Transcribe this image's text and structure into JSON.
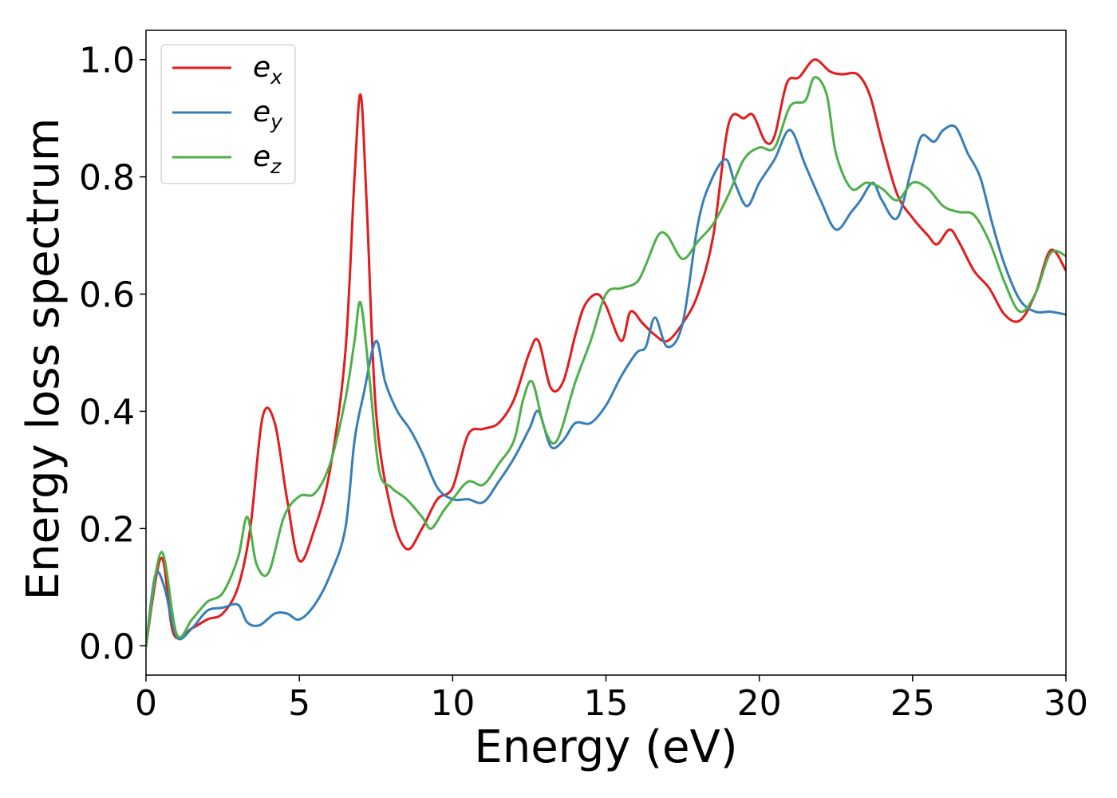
{
  "chart_data": {
    "type": "line",
    "title": "",
    "xlabel": "Energy (eV)",
    "ylabel": "Energy loss spectrum",
    "xlim": [
      0,
      30
    ],
    "ylim": [
      -0.05,
      1.05
    ],
    "xticks": [
      0,
      5,
      10,
      15,
      20,
      25,
      30
    ],
    "xtick_labels": [
      "0",
      "5",
      "10",
      "15",
      "20",
      "25",
      "30"
    ],
    "yticks": [
      0.0,
      0.2,
      0.4,
      0.6,
      0.8,
      1.0
    ],
    "ytick_labels": [
      "0.0",
      "0.2",
      "0.4",
      "0.6",
      "0.8",
      "1.0"
    ],
    "grid": false,
    "legend_position": "upper-left",
    "series": [
      {
        "name": "e_x",
        "label_main": "e",
        "label_sub": "x",
        "color": "#e41a1c",
        "x": [
          0,
          0.5,
          0.9,
          1.5,
          2,
          2.5,
          3,
          3.4,
          3.8,
          4.2,
          4.6,
          5,
          5.5,
          6,
          6.5,
          6.8,
          7,
          7.2,
          7.5,
          8,
          8.5,
          9,
          9.5,
          10,
          10.5,
          11,
          11.5,
          12,
          12.5,
          12.8,
          13.2,
          13.6,
          14,
          14.3,
          14.7,
          15,
          15.5,
          15.8,
          16.2,
          16.6,
          17,
          17.5,
          18,
          18.5,
          19,
          19.5,
          19.8,
          20.2,
          20.5,
          20.9,
          21.3,
          21.8,
          22.3,
          22.7,
          23.2,
          23.6,
          24,
          24.5,
          25,
          25.5,
          25.8,
          26.2,
          26.5,
          27,
          27.5,
          28,
          28.5,
          29,
          29.5,
          30
        ],
        "y": [
          0.0,
          0.15,
          0.02,
          0.03,
          0.045,
          0.055,
          0.1,
          0.2,
          0.39,
          0.38,
          0.25,
          0.145,
          0.2,
          0.3,
          0.5,
          0.8,
          0.94,
          0.75,
          0.4,
          0.23,
          0.165,
          0.2,
          0.25,
          0.27,
          0.36,
          0.37,
          0.38,
          0.42,
          0.5,
          0.52,
          0.44,
          0.45,
          0.53,
          0.58,
          0.6,
          0.58,
          0.52,
          0.57,
          0.55,
          0.53,
          0.52,
          0.55,
          0.6,
          0.7,
          0.89,
          0.9,
          0.905,
          0.86,
          0.87,
          0.96,
          0.97,
          1.0,
          0.98,
          0.975,
          0.975,
          0.94,
          0.86,
          0.77,
          0.73,
          0.7,
          0.685,
          0.71,
          0.69,
          0.64,
          0.61,
          0.565,
          0.555,
          0.6,
          0.675,
          0.64
        ]
      },
      {
        "name": "e_y",
        "label_main": "e",
        "label_sub": "y",
        "color": "#377eb8",
        "x": [
          0,
          0.3,
          0.6,
          1,
          1.5,
          2,
          2.5,
          3,
          3.3,
          3.7,
          4.2,
          4.6,
          5,
          5.5,
          6,
          6.5,
          6.8,
          7.1,
          7.5,
          7.8,
          8.2,
          8.6,
          9,
          9.5,
          10,
          10.5,
          11,
          11.5,
          12,
          12.5,
          12.8,
          13.2,
          13.6,
          14,
          14.5,
          15,
          15.5,
          16,
          16.3,
          16.6,
          17,
          17.5,
          18,
          18.4,
          18.9,
          19.2,
          19.6,
          20,
          20.5,
          21,
          21.5,
          22,
          22.5,
          23,
          23.3,
          23.7,
          24,
          24.5,
          25,
          25.3,
          25.7,
          26,
          26.4,
          26.8,
          27.2,
          27.6,
          28,
          28.5,
          29,
          29.5,
          30
        ],
        "y": [
          0.0,
          0.12,
          0.1,
          0.015,
          0.03,
          0.06,
          0.065,
          0.07,
          0.04,
          0.035,
          0.055,
          0.055,
          0.045,
          0.07,
          0.12,
          0.2,
          0.35,
          0.43,
          0.52,
          0.45,
          0.4,
          0.37,
          0.33,
          0.27,
          0.25,
          0.25,
          0.245,
          0.28,
          0.32,
          0.37,
          0.4,
          0.34,
          0.35,
          0.38,
          0.38,
          0.41,
          0.46,
          0.5,
          0.51,
          0.56,
          0.51,
          0.55,
          0.72,
          0.79,
          0.83,
          0.79,
          0.75,
          0.79,
          0.83,
          0.88,
          0.82,
          0.76,
          0.71,
          0.74,
          0.76,
          0.79,
          0.76,
          0.73,
          0.82,
          0.87,
          0.86,
          0.88,
          0.885,
          0.84,
          0.8,
          0.72,
          0.65,
          0.59,
          0.57,
          0.57,
          0.565
        ]
      },
      {
        "name": "e_z",
        "label_main": "e",
        "label_sub": "z",
        "color": "#4daf4a",
        "x": [
          0,
          0.5,
          1,
          1.5,
          2,
          2.5,
          3,
          3.3,
          3.6,
          4,
          4.5,
          5,
          5.5,
          6,
          6.5,
          6.8,
          7,
          7.3,
          7.6,
          8,
          8.5,
          9,
          9.3,
          9.7,
          10,
          10.5,
          11,
          11.5,
          12,
          12.3,
          12.6,
          13,
          13.4,
          14,
          14.5,
          15,
          15.5,
          16,
          16.3,
          16.7,
          17,
          17.5,
          18,
          18.5,
          19,
          19.5,
          20,
          20.5,
          21,
          21.5,
          21.8,
          22.2,
          22.5,
          23,
          23.5,
          24,
          24.5,
          25,
          25.5,
          26,
          26.5,
          27,
          27.5,
          28,
          28.5,
          29,
          29.5,
          30
        ],
        "y": [
          0.0,
          0.16,
          0.02,
          0.045,
          0.075,
          0.09,
          0.15,
          0.22,
          0.14,
          0.125,
          0.22,
          0.255,
          0.26,
          0.31,
          0.42,
          0.52,
          0.585,
          0.45,
          0.3,
          0.27,
          0.25,
          0.22,
          0.2,
          0.23,
          0.25,
          0.28,
          0.275,
          0.31,
          0.35,
          0.42,
          0.45,
          0.37,
          0.35,
          0.45,
          0.52,
          0.6,
          0.61,
          0.62,
          0.65,
          0.7,
          0.7,
          0.66,
          0.69,
          0.72,
          0.77,
          0.83,
          0.85,
          0.85,
          0.92,
          0.93,
          0.97,
          0.94,
          0.84,
          0.78,
          0.79,
          0.78,
          0.76,
          0.79,
          0.78,
          0.75,
          0.74,
          0.735,
          0.69,
          0.62,
          0.57,
          0.6,
          0.67,
          0.665
        ]
      }
    ]
  }
}
